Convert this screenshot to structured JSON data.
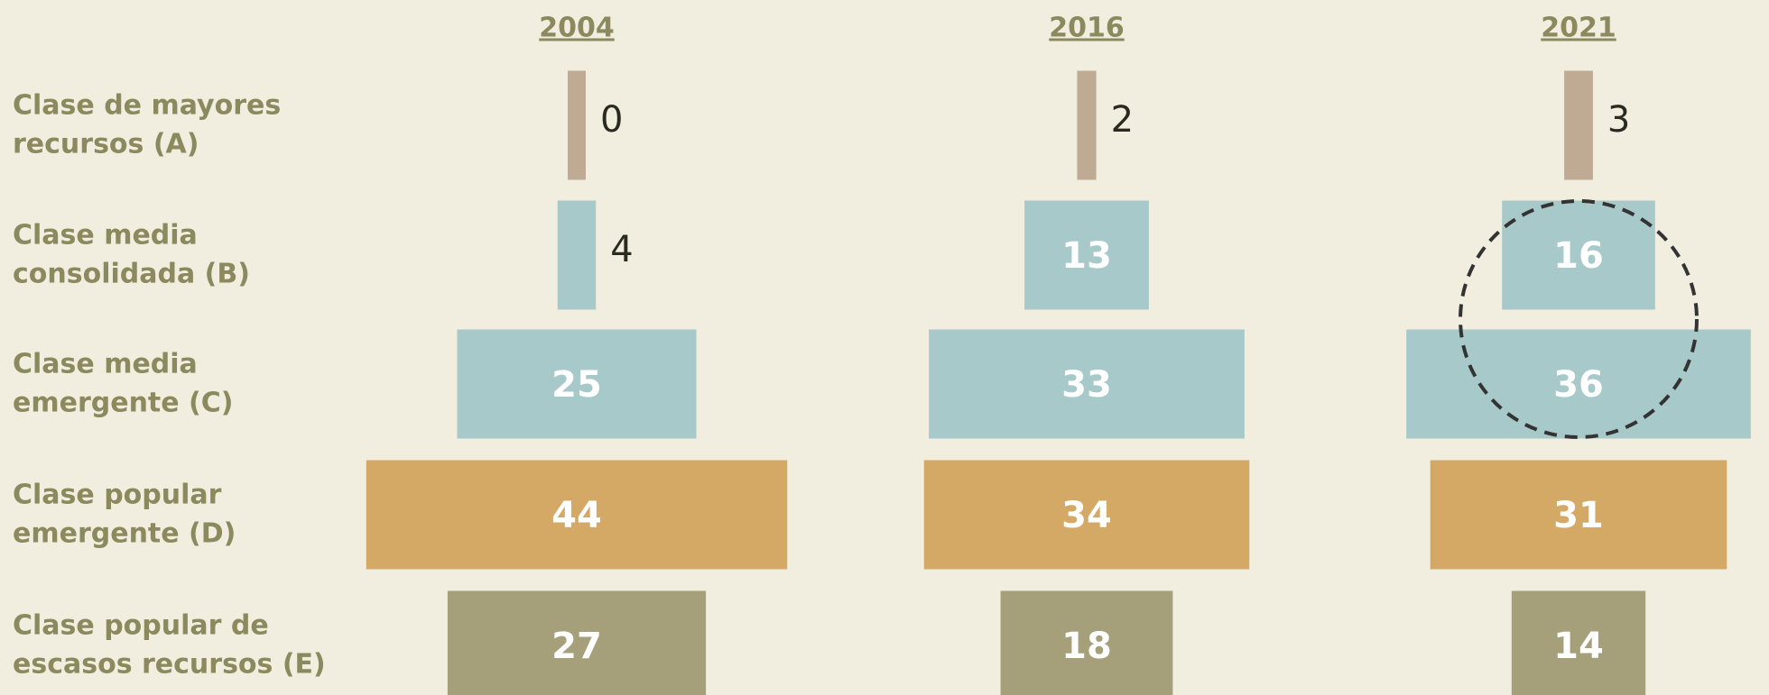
{
  "chart_data": {
    "type": "pyramid",
    "categories": [
      [
        "Clase de mayores",
        "recursos (A)"
      ],
      [
        "Clase media",
        "consolidada (B)"
      ],
      [
        "Clase media",
        "emergente (C)"
      ],
      [
        "Clase popular",
        "emergente (D)"
      ],
      [
        "Clase popular de",
        "escasos recursos (E)"
      ]
    ],
    "colors": [
      "#bfaa93",
      "#a8c9c9",
      "#a8c9c9",
      "#d4a865",
      "#a59f7a"
    ],
    "series": [
      {
        "name": "2004",
        "values": [
          0,
          4,
          25,
          44,
          27
        ]
      },
      {
        "name": "2016",
        "values": [
          2,
          13,
          33,
          34,
          18
        ]
      },
      {
        "name": "2021",
        "values": [
          3,
          16,
          36,
          31,
          14
        ]
      }
    ]
  }
}
